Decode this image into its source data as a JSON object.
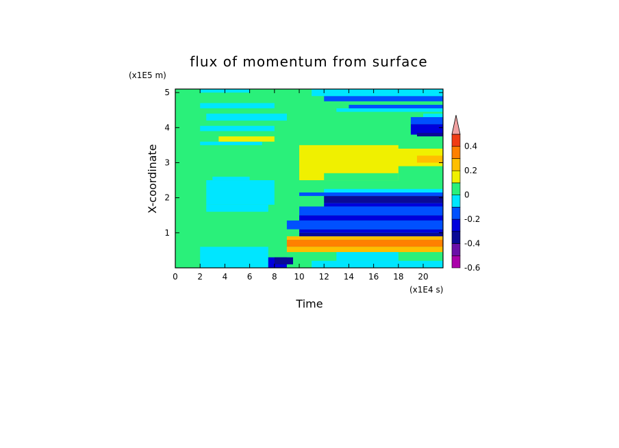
{
  "chart_data": {
    "type": "heatmap",
    "title": "flux of momentum from surface",
    "xlabel": "Time",
    "ylabel": "X-coordinate",
    "x_unit": "(x1E4 s)",
    "y_unit": "(x1E5 m)",
    "xlim": [
      0,
      21.6
    ],
    "ylim": [
      0,
      5.1
    ],
    "x_ticks": [
      0,
      2,
      4,
      6,
      8,
      10,
      12,
      14,
      16,
      18,
      20
    ],
    "y_ticks": [
      1,
      2,
      3,
      4,
      5
    ],
    "colorbar": {
      "levels": [
        -0.6,
        -0.5,
        -0.4,
        -0.3,
        -0.2,
        -0.1,
        0,
        0.1,
        0.2,
        0.3,
        0.4,
        0.5
      ],
      "colors": [
        "#aa00aa",
        "#6a0fa8",
        "#0a0a96",
        "#0000dc",
        "#0050ff",
        "#00e6ff",
        "#2af07a",
        "#f0f000",
        "#ffbe00",
        "#ff8000",
        "#f03c14",
        "#f0a0a0"
      ],
      "labels": [
        "-0.6",
        "-0.4",
        "-0.2",
        "0",
        "0.2",
        "0.4"
      ],
      "label_values": [
        -0.6,
        -0.4,
        -0.2,
        0,
        0.2,
        0.4
      ],
      "extend": "max"
    },
    "regions": [
      {
        "t0": 0,
        "t1": 21.6,
        "x0": 0,
        "x1": 5.1,
        "v": 0.05
      },
      {
        "t0": 2,
        "t1": 7.5,
        "x0": 0,
        "x1": 0.6,
        "v": -0.05
      },
      {
        "t0": 2.5,
        "t1": 7.5,
        "x0": 1.6,
        "x1": 1.8,
        "v": -0.05
      },
      {
        "t0": 2.5,
        "t1": 8,
        "x0": 1.8,
        "x1": 2.5,
        "v": -0.05
      },
      {
        "t0": 3,
        "t1": 6,
        "x0": 2.5,
        "x1": 2.6,
        "v": -0.05
      },
      {
        "t0": 2,
        "t1": 7,
        "x0": 3.5,
        "x1": 3.6,
        "v": -0.05
      },
      {
        "t0": 2,
        "t1": 8,
        "x0": 3.9,
        "x1": 4.05,
        "v": -0.05
      },
      {
        "t0": 2.5,
        "t1": 9,
        "x0": 4.2,
        "x1": 4.4,
        "v": -0.05
      },
      {
        "t0": 2,
        "t1": 8,
        "x0": 4.55,
        "x1": 4.7,
        "v": -0.05
      },
      {
        "t0": 2,
        "t1": 6,
        "x0": 5.0,
        "x1": 5.1,
        "v": -0.05
      },
      {
        "t0": 7.5,
        "t1": 9,
        "x0": 0,
        "x1": 0.3,
        "v": -0.25
      },
      {
        "t0": 8,
        "t1": 9.5,
        "x0": 0.1,
        "x1": 0.3,
        "v": -0.35
      },
      {
        "t0": 9,
        "t1": 21.6,
        "x0": 0.8,
        "x1": 0.9,
        "v": 0.25
      },
      {
        "t0": 9,
        "t1": 21.6,
        "x0": 0.6,
        "x1": 0.8,
        "v": 0.35
      },
      {
        "t0": 9,
        "t1": 21.6,
        "x0": 0.45,
        "x1": 0.6,
        "v": 0.25
      },
      {
        "t0": 10,
        "t1": 21.6,
        "x0": 0.9,
        "x1": 1.0,
        "v": -0.35
      },
      {
        "t0": 10,
        "t1": 21.6,
        "x0": 1.0,
        "x1": 1.1,
        "v": -0.25
      },
      {
        "t0": 9,
        "t1": 21.6,
        "x0": 1.1,
        "x1": 1.35,
        "v": -0.15
      },
      {
        "t0": 10,
        "t1": 21.6,
        "x0": 1.35,
        "x1": 1.5,
        "v": -0.25
      },
      {
        "t0": 10,
        "t1": 21.6,
        "x0": 1.5,
        "x1": 1.75,
        "v": -0.15
      },
      {
        "t0": 12,
        "t1": 21.6,
        "x0": 1.75,
        "x1": 1.85,
        "v": -0.25
      },
      {
        "t0": 12,
        "t1": 21.6,
        "x0": 1.85,
        "x1": 2.05,
        "v": -0.35
      },
      {
        "t0": 10,
        "t1": 21.6,
        "x0": 2.05,
        "x1": 2.15,
        "v": -0.15
      },
      {
        "t0": 12,
        "t1": 21.6,
        "x0": 2.15,
        "x1": 2.25,
        "v": -0.05
      },
      {
        "t0": 11,
        "t1": 21.6,
        "x0": 0,
        "x1": 0.2,
        "v": -0.05
      },
      {
        "t0": 13,
        "t1": 18,
        "x0": 0.2,
        "x1": 0.45,
        "v": -0.05
      },
      {
        "t0": 10,
        "t1": 18,
        "x0": 2.5,
        "x1": 3.5,
        "v": 0.15
      },
      {
        "t0": 12,
        "t1": 18,
        "x0": 2.5,
        "x1": 2.7,
        "v": 0.05
      },
      {
        "t0": 16,
        "t1": 21.6,
        "x0": 2.9,
        "x1": 3.4,
        "v": 0.15
      },
      {
        "t0": 19.5,
        "t1": 21.6,
        "x0": 3.0,
        "x1": 3.2,
        "v": 0.25
      },
      {
        "t0": 3.5,
        "t1": 8,
        "x0": 3.6,
        "x1": 3.75,
        "v": 0.15
      },
      {
        "t0": 13,
        "t1": 21.6,
        "x0": 4.45,
        "x1": 4.55,
        "v": -0.05
      },
      {
        "t0": 14,
        "t1": 21.6,
        "x0": 4.55,
        "x1": 4.65,
        "v": -0.15
      },
      {
        "t0": 12,
        "t1": 21.6,
        "x0": 4.75,
        "x1": 4.9,
        "v": -0.15
      },
      {
        "t0": 11,
        "t1": 21.6,
        "x0": 4.9,
        "x1": 5.1,
        "v": -0.05
      },
      {
        "t0": 19,
        "t1": 21.6,
        "x0": 3.8,
        "x1": 4.1,
        "v": -0.25
      },
      {
        "t0": 19.5,
        "t1": 21.6,
        "x0": 3.75,
        "x1": 3.85,
        "v": -0.35
      },
      {
        "t0": 19,
        "t1": 21.6,
        "x0": 4.1,
        "x1": 4.3,
        "v": -0.15
      },
      {
        "t0": 20,
        "t1": 21.6,
        "x0": 4.3,
        "x1": 4.4,
        "v": -0.05
      }
    ]
  }
}
